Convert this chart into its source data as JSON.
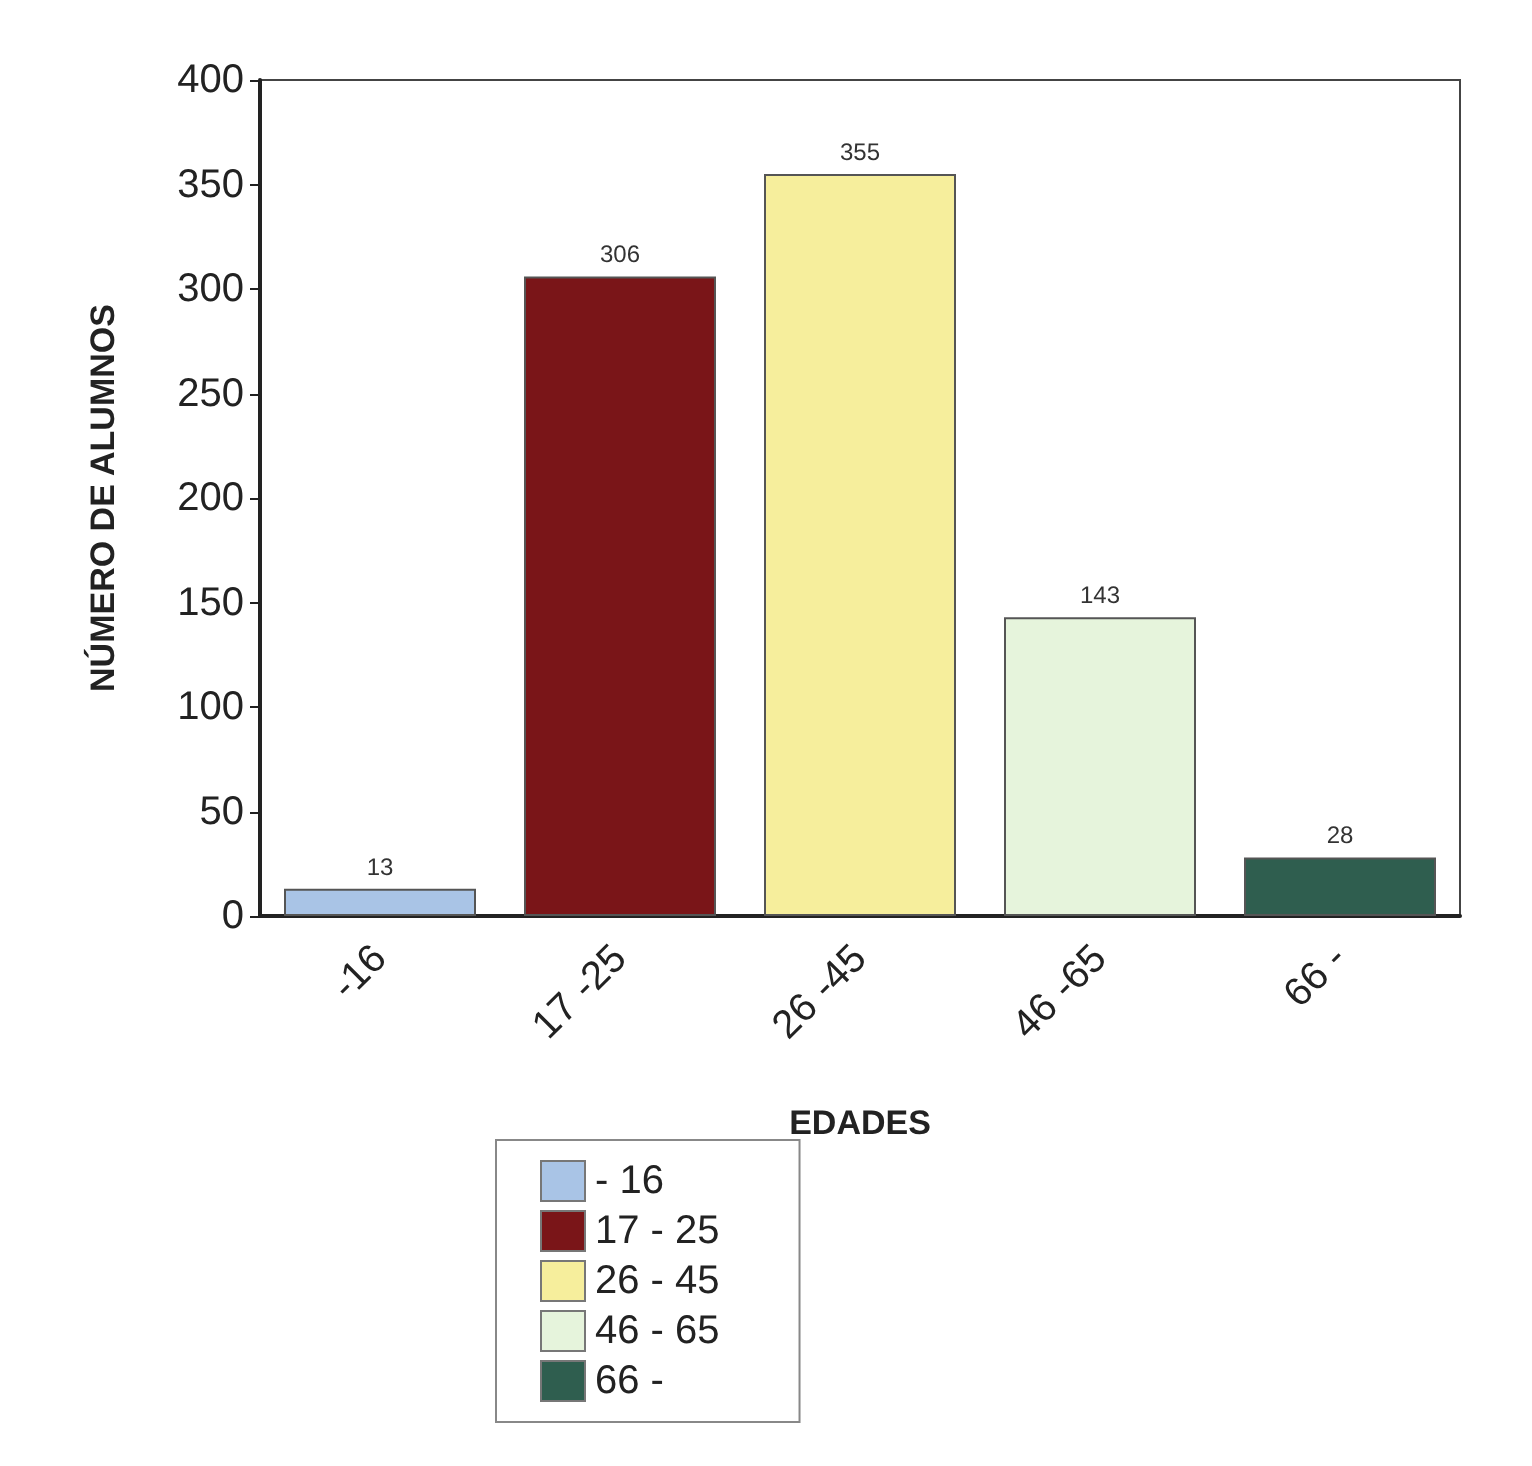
{
  "chart_data": {
    "type": "bar",
    "xlabel": "EDADES",
    "ylabel": "NÚMERO DE ALUMNOS",
    "categories": [
      "-16",
      "17 -25",
      "26 -45",
      "46 -65",
      "66 -"
    ],
    "series": [
      {
        "name": "- 16",
        "color": "#a9c4e6",
        "values": [
          13,
          null,
          null,
          null,
          null
        ]
      },
      {
        "name": "17 - 25",
        "color": "#7a1518",
        "values": [
          null,
          306,
          null,
          null,
          null
        ]
      },
      {
        "name": "26 - 45",
        "color": "#f6ee9c",
        "values": [
          null,
          null,
          355,
          null,
          null
        ]
      },
      {
        "name": "46 - 65",
        "color": "#e6f4dc",
        "values": [
          null,
          null,
          null,
          143,
          null
        ]
      },
      {
        "name": "66 -",
        "color": "#2f5e4f",
        "values": [
          null,
          null,
          null,
          null,
          28
        ]
      }
    ],
    "ylim": [
      0,
      400
    ],
    "yticks": [
      0,
      50,
      100,
      150,
      200,
      250,
      300,
      350,
      400
    ],
    "data_labels": true,
    "grid": false,
    "legend": "bottom"
  }
}
